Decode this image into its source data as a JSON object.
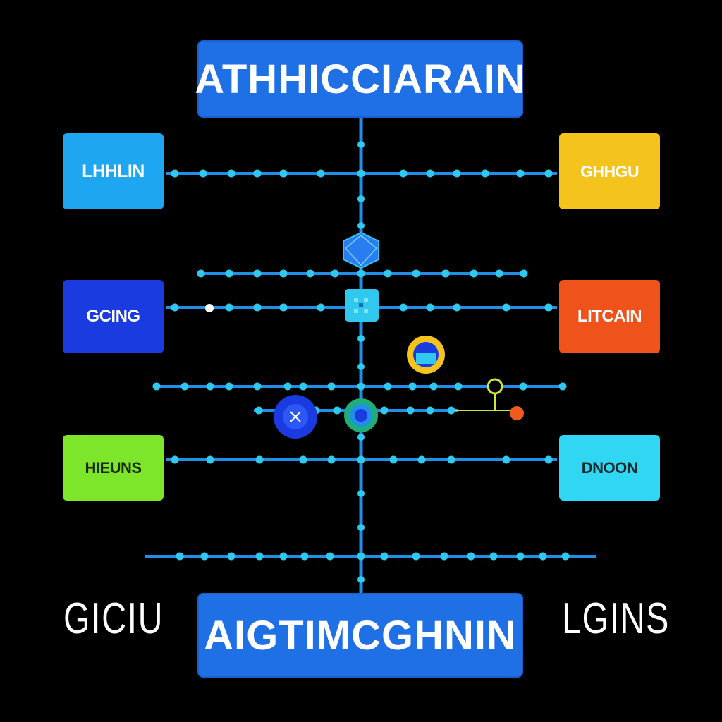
{
  "header": {
    "title": "ATHHICCIARAIN"
  },
  "footer": {
    "title": "AIGTIMCGHNIN"
  },
  "side_words": {
    "left": "GICIU",
    "right": "LGINS"
  },
  "left_nodes": [
    {
      "label": "LHHLIN",
      "color": "#1ea6f0"
    },
    {
      "label": "GCING",
      "color": "#1a3be0"
    },
    {
      "label": "HIEUNS",
      "color": "#7ee62a"
    }
  ],
  "right_nodes": [
    {
      "label": "GHHGU",
      "color": "#f4c31e"
    },
    {
      "label": "LITCAIN",
      "color": "#f0521c"
    },
    {
      "label": "DNOON",
      "color": "#31d6f2"
    }
  ],
  "colors": {
    "background": "#000000",
    "line": "#1f8fe8",
    "dot": "#31c8f0",
    "title_box": "#1f6fe5",
    "accent_yellow": "#f4c31e",
    "accent_green": "#c8e83a",
    "accent_orange": "#f05a1c"
  },
  "icons": [
    "hexagon-icon",
    "grid-square-icon",
    "ring-icon",
    "close-circle-icon",
    "target-circle-icon",
    "branch-node-icon"
  ]
}
